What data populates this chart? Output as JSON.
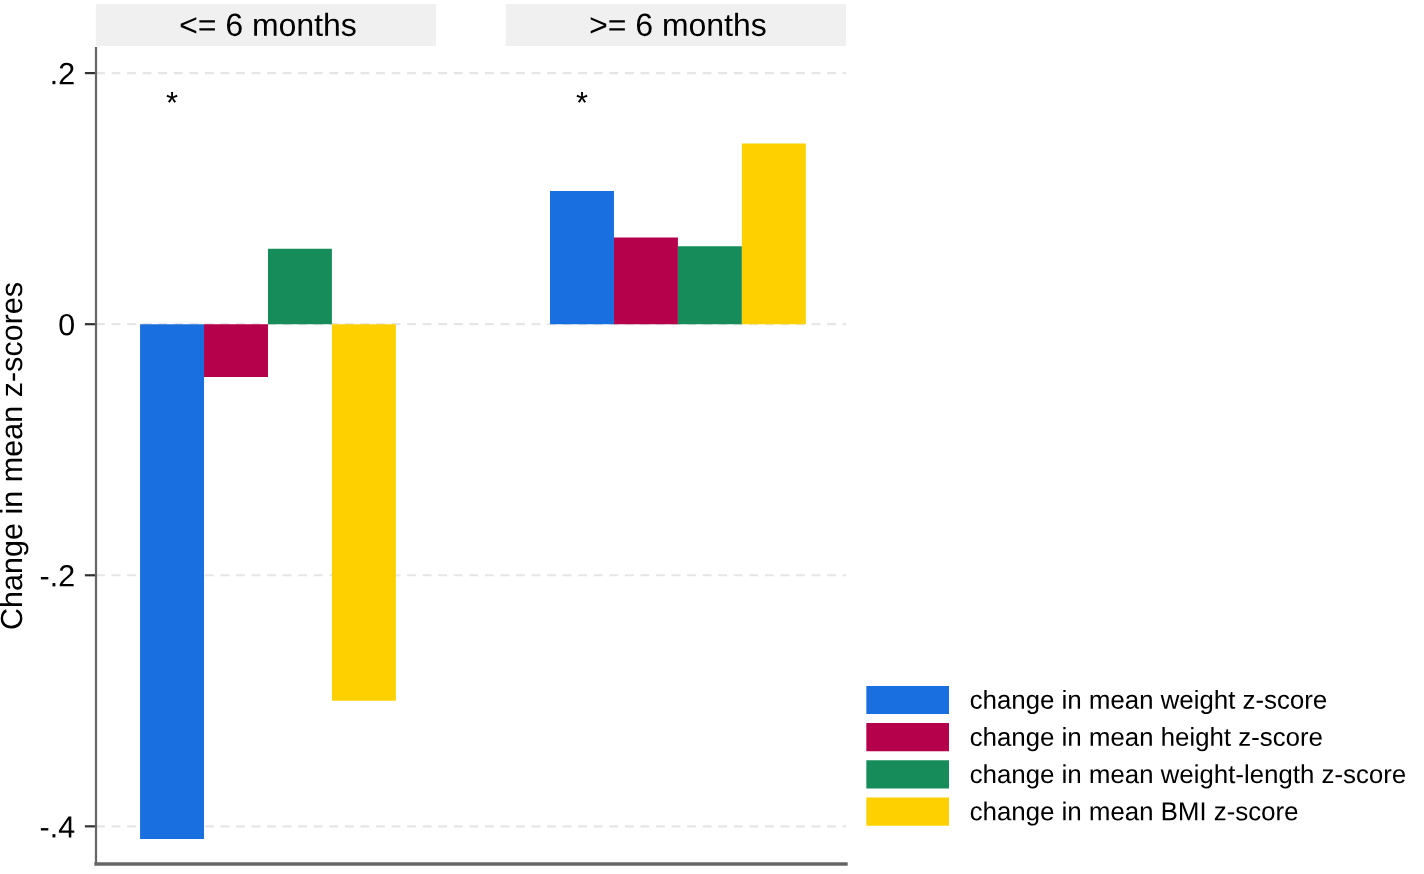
{
  "chart_data": {
    "type": "bar",
    "ylabel": "Change in mean z-scores",
    "categories": [
      "<= 6 months",
      ">= 6 months"
    ],
    "ylim": [
      -0.43,
      0.22
    ],
    "yticks": [
      {
        "value": -0.4,
        "label": "-.4"
      },
      {
        "value": -0.2,
        "label": "-.2"
      },
      {
        "value": 0,
        "label": "0"
      },
      {
        "value": 0.2,
        "label": ".2"
      }
    ],
    "grid": "y",
    "legend": "bottom right",
    "annotations": [
      "*",
      "*"
    ],
    "series": [
      {
        "name": "change in mean weight z-score",
        "color": "#1a6fe0",
        "values": [
          -0.41,
          0.106
        ]
      },
      {
        "name": "change in mean height z-score",
        "color": "#b5004b",
        "values": [
          -0.042,
          0.069
        ]
      },
      {
        "name": "change in mean weight-length z-score",
        "color": "#168c5a",
        "values": [
          0.06,
          0.062
        ]
      },
      {
        "name": "change in mean BMI z-score",
        "color": "#ffd000",
        "values": [
          -0.3,
          0.144
        ]
      }
    ]
  }
}
